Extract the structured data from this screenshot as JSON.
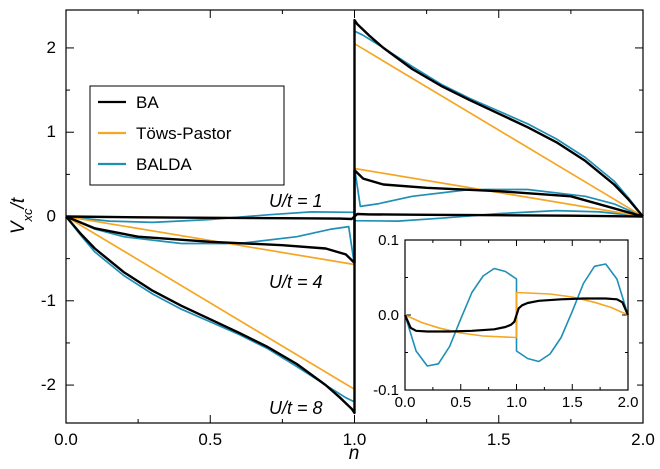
{
  "chart_data": {
    "type": "line",
    "xlabel": "n",
    "ylabel": "V_xc/t",
    "xlim": [
      0,
      2
    ],
    "ylim": [
      -2.45,
      2.45
    ],
    "xticks": [
      "0.0",
      "0.5",
      "1.0",
      "1.5",
      "2.0"
    ],
    "yticks": [
      "-2",
      "-1",
      "0",
      "1",
      "2"
    ],
    "legend": {
      "position": "upper-left",
      "entries": [
        "BA",
        "Töws-Pastor",
        "BALDA"
      ]
    },
    "colors": {
      "BA": "#000000",
      "Töws-Pastor": "#f5a623",
      "BALDA": "#1f8fb5"
    },
    "annotations": [
      "U/t = 1",
      "U/t = 4",
      "U/t = 8"
    ],
    "series": [
      {
        "name": "BA",
        "U": 1,
        "x": [
          0.0,
          0.25,
          0.5,
          0.75,
          0.95,
          0.99,
          1.0,
          1.01,
          1.05,
          1.25,
          1.5,
          1.75,
          2.0
        ],
        "y": [
          0.0,
          -0.01,
          -0.015,
          -0.02,
          -0.025,
          -0.03,
          0.0,
          0.03,
          0.025,
          0.02,
          0.015,
          0.01,
          0.0
        ]
      },
      {
        "name": "Töws-Pastor",
        "U": 1,
        "x": [
          0.0,
          1.0,
          1.0,
          2.0
        ],
        "y": [
          0.0,
          -0.03,
          0.03,
          0.0
        ]
      },
      {
        "name": "BALDA",
        "U": 1,
        "x": [
          0.0,
          0.15,
          0.3,
          0.5,
          0.7,
          0.85,
          1.0,
          1.0,
          1.15,
          1.3,
          1.5,
          1.7,
          1.85,
          2.0
        ],
        "y": [
          0.0,
          -0.055,
          -0.07,
          -0.035,
          0.02,
          0.055,
          0.05,
          -0.05,
          -0.055,
          -0.02,
          0.035,
          0.07,
          0.055,
          0.0
        ]
      },
      {
        "name": "BA",
        "U": 4,
        "x": [
          0.0,
          0.1,
          0.25,
          0.5,
          0.75,
          0.9,
          0.97,
          1.0,
          1.0,
          1.03,
          1.1,
          1.25,
          1.5,
          1.75,
          2.0
        ],
        "y": [
          0.0,
          -0.14,
          -0.24,
          -0.3,
          -0.34,
          -0.38,
          -0.45,
          -0.55,
          0.55,
          0.45,
          0.38,
          0.34,
          0.3,
          0.24,
          0.0
        ]
      },
      {
        "name": "Töws-Pastor",
        "U": 4,
        "x": [
          0.0,
          1.0,
          1.0,
          2.0
        ],
        "y": [
          0.0,
          -0.57,
          0.57,
          0.0
        ]
      },
      {
        "name": "BALDA",
        "U": 4,
        "x": [
          0.0,
          0.1,
          0.2,
          0.4,
          0.6,
          0.8,
          0.92,
          0.98,
          1.0,
          1.0,
          1.02,
          1.08,
          1.2,
          1.4,
          1.6,
          1.8,
          1.9,
          2.0
        ],
        "y": [
          0.0,
          -0.15,
          -0.24,
          -0.32,
          -0.32,
          -0.24,
          -0.15,
          -0.12,
          -0.58,
          0.58,
          0.12,
          0.15,
          0.24,
          0.32,
          0.32,
          0.24,
          0.15,
          0.0
        ]
      },
      {
        "name": "BA",
        "U": 8,
        "x": [
          0.0,
          0.05,
          0.1,
          0.2,
          0.3,
          0.4,
          0.5,
          0.6,
          0.7,
          0.8,
          0.9,
          0.95,
          0.99,
          1.0,
          1.0,
          1.01,
          1.05,
          1.1,
          1.2,
          1.3,
          1.4,
          1.5,
          1.6,
          1.7,
          1.8,
          1.9,
          1.95,
          2.0
        ],
        "y": [
          0.0,
          -0.2,
          -0.38,
          -0.66,
          -0.88,
          -1.06,
          -1.22,
          -1.38,
          -1.55,
          -1.75,
          -2.0,
          -2.15,
          -2.28,
          -2.33,
          2.33,
          2.28,
          2.15,
          2.0,
          1.75,
          1.55,
          1.38,
          1.22,
          1.06,
          0.88,
          0.66,
          0.38,
          0.2,
          0.0
        ]
      },
      {
        "name": "Töws-Pastor",
        "U": 8,
        "x": [
          0.0,
          1.0,
          1.0,
          2.0
        ],
        "y": [
          0.0,
          -2.05,
          2.05,
          0.0
        ]
      },
      {
        "name": "BALDA",
        "U": 8,
        "x": [
          0.0,
          0.05,
          0.1,
          0.2,
          0.3,
          0.4,
          0.5,
          0.6,
          0.7,
          0.8,
          0.9,
          0.97,
          1.0,
          1.0,
          1.03,
          1.1,
          1.2,
          1.3,
          1.4,
          1.5,
          1.6,
          1.7,
          1.8,
          1.9,
          1.95,
          2.0
        ],
        "y": [
          0.0,
          -0.22,
          -0.42,
          -0.7,
          -0.92,
          -1.1,
          -1.25,
          -1.4,
          -1.57,
          -1.78,
          -2.0,
          -2.15,
          -2.2,
          2.2,
          2.15,
          2.0,
          1.78,
          1.57,
          1.4,
          1.25,
          1.1,
          0.92,
          0.7,
          0.42,
          0.22,
          0.0
        ]
      }
    ],
    "inset": {
      "type": "line",
      "xlim": [
        0,
        2
      ],
      "ylim": [
        -0.1,
        0.1
      ],
      "xticks": [
        "0.0",
        "0.5",
        "1.0",
        "1.5",
        "2.0"
      ],
      "yticks": [
        "-0.1",
        "0.0",
        "0.1"
      ],
      "series": [
        {
          "name": "BA",
          "x": [
            0.0,
            0.05,
            0.1,
            0.2,
            0.4,
            0.6,
            0.8,
            0.9,
            0.95,
            0.98,
            1.0,
            1.02,
            1.05,
            1.1,
            1.2,
            1.4,
            1.6,
            1.8,
            1.9,
            1.95,
            2.0
          ],
          "y": [
            0.0,
            -0.017,
            -0.021,
            -0.022,
            -0.022,
            -0.021,
            -0.019,
            -0.016,
            -0.013,
            -0.009,
            0.0,
            0.009,
            0.013,
            0.016,
            0.019,
            0.021,
            0.022,
            0.022,
            0.021,
            0.017,
            0.0
          ]
        },
        {
          "name": "Töws-Pastor",
          "x": [
            0.0,
            0.15,
            0.3,
            0.5,
            0.7,
            1.0,
            1.0,
            1.3,
            1.5,
            1.7,
            1.85,
            2.0
          ],
          "y": [
            0.0,
            -0.01,
            -0.017,
            -0.024,
            -0.028,
            -0.03,
            0.03,
            0.028,
            0.024,
            0.017,
            0.01,
            0.0
          ]
        },
        {
          "name": "BALDA",
          "x": [
            0.0,
            0.1,
            0.2,
            0.3,
            0.4,
            0.5,
            0.6,
            0.7,
            0.8,
            0.9,
            1.0,
            1.0,
            1.1,
            1.2,
            1.3,
            1.4,
            1.5,
            1.6,
            1.7,
            1.8,
            1.9,
            2.0
          ],
          "y": [
            0.0,
            -0.048,
            -0.068,
            -0.065,
            -0.042,
            -0.005,
            0.03,
            0.052,
            0.062,
            0.058,
            0.048,
            -0.048,
            -0.058,
            -0.062,
            -0.052,
            -0.03,
            0.005,
            0.042,
            0.065,
            0.068,
            0.048,
            0.0
          ]
        }
      ]
    }
  }
}
